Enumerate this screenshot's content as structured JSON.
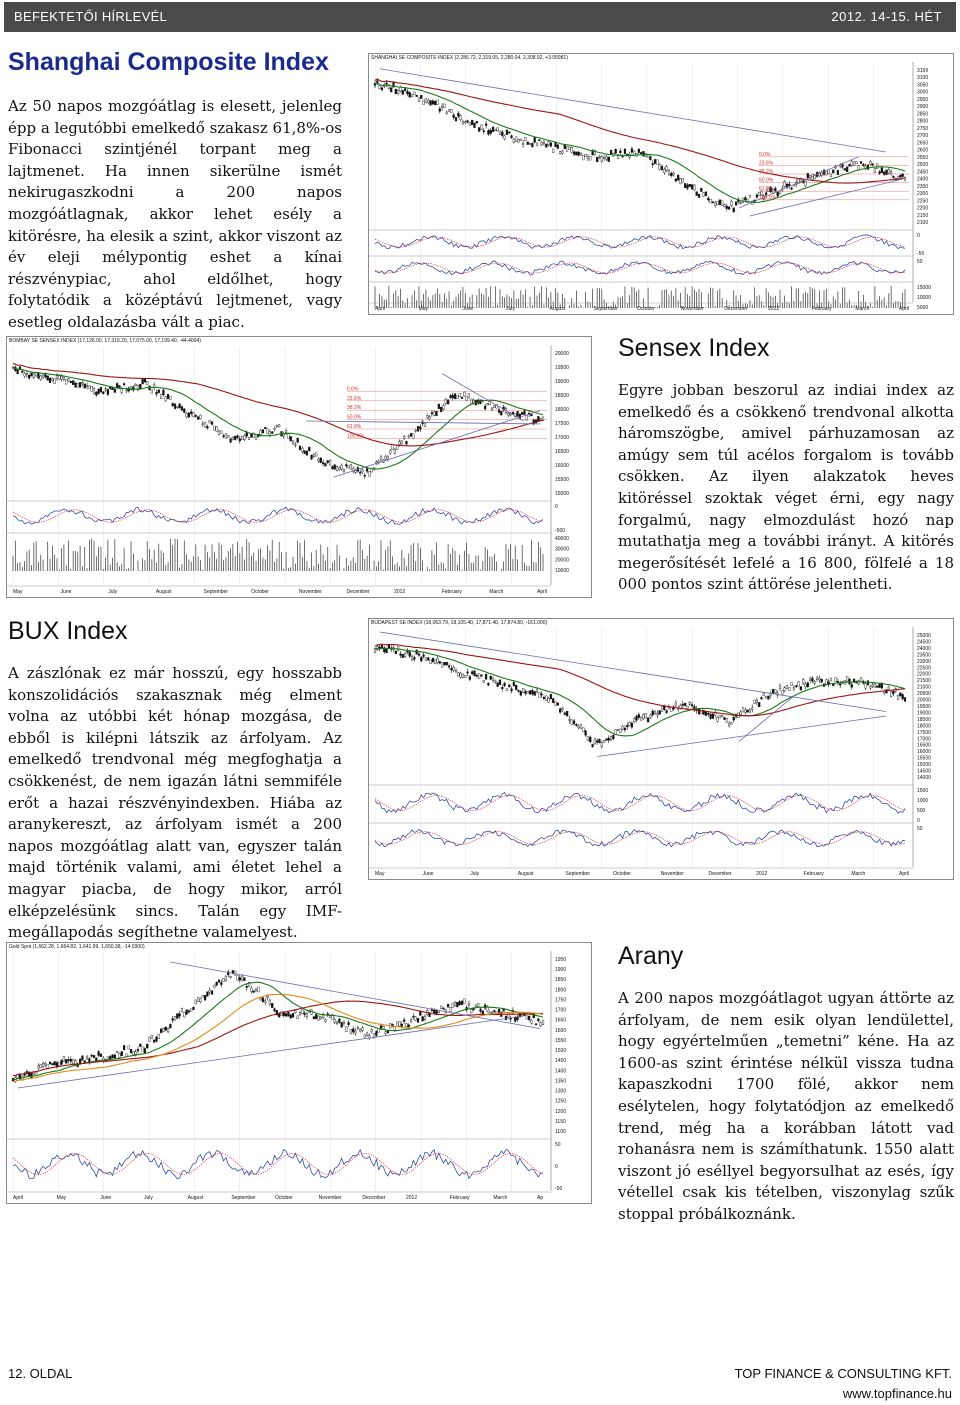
{
  "header": {
    "left": "BEFEKTETŐI HÍRLEVÉL",
    "right": "2012. 14-15. HÉT"
  },
  "shanghai": {
    "title": "Shanghai Composite Index",
    "text": "Az 50 napos mozgóátlag is elesett, jelenleg épp a legutóbbi emelkedő szakasz 61,8%-os Fibonacci szintjénél torpant meg a lajtmenet. Ha innen sikerülne ismét nekirugaszkodni a 200 napos mozgóátlagnak, akkor lehet esély a kitörésre, ha elesik a szint, akkor viszont az év eleji mélypontig eshet a kínai részvénypiac, ahol eldőlhet, hogy folytatódik a középtávú lejtmenet, vagy esetleg oldalazásba vált a piac.",
    "chart_title": "SHANGHAI SE COMPOSITE INDEX (2,286.72, 2,319.05, 2,280.04, 2,308.92, +3.05981)",
    "y_ticks": [
      "3159",
      "3100",
      "3050",
      "3000",
      "2950",
      "2900",
      "2850",
      "2800",
      "2750",
      "2700",
      "2650",
      "2600",
      "2550",
      "2500",
      "2450",
      "2400",
      "2350",
      "2300",
      "2250",
      "2200",
      "2150",
      "2100"
    ],
    "osc_ticks": [
      "0",
      "-50"
    ],
    "osc2_ticks": [
      "50"
    ],
    "vol_ticks": [
      "15000",
      "10000",
      "5000"
    ],
    "fib": [
      "0.0%",
      "23.6%",
      "38.2%",
      "50.0%",
      "61.8%",
      "100.0%"
    ],
    "months": [
      "April",
      "May",
      "June",
      "July",
      "August",
      "September",
      "October",
      "November",
      "December",
      "2012",
      "February",
      "March",
      "April"
    ]
  },
  "sensex": {
    "title": "Sensex Index",
    "text": "Egyre jobban beszorul az indiai index az emelkedő és a csökkenő trendvonal alkotta háromszögbe, amivel párhuzamosan az amúgy sem túl acélos forgalom is tovább csökken. Az ilyen alakzatok heves kitöréssel szoktak véget érni, egy nagy forgalmú, nagy elmozdulást hozó nap mutathatja meg a további irányt. A kitörés megerősítését lefelé a 16 800, fölfelé a 18 000 pontos szint áttörése jelentheti.",
    "chart_title": "BOMBAY SE SENSEX INDEX (17,126.00, 17,319.20, 17,075.00, 17,199.40, -44.4004)",
    "y_ticks": [
      "20000",
      "19500",
      "19000",
      "18500",
      "18000",
      "17500",
      "17000",
      "16500",
      "16000",
      "15500",
      "15000"
    ],
    "osc_ticks": [
      "0",
      "-500"
    ],
    "vol_ticks": [
      "40000",
      "30000",
      "20000",
      "10000"
    ],
    "fib": [
      "0.0%",
      "23.6%",
      "38.2%",
      "50.0%",
      "61.8%",
      "100.0%"
    ],
    "months": [
      "May",
      "June",
      "July",
      "August",
      "September",
      "October",
      "November",
      "December",
      "2012",
      "February",
      "March",
      "April"
    ]
  },
  "bux": {
    "title": "BUX Index",
    "text": "A zászlónak ez már hosszú, egy hosszabb konszolidációs szakasznak még elment volna az utóbbi két hónap mozgása, de ebből is kilépni látszik az árfolyam. Az emelkedő trendvonal még megfoghatja a csökkenést, de nem igazán látni semmiféle erőt a hazai részvényindexben. Hiába az aranykereszt, az árfolyam ismét a 200 napos mozgóátlag alatt van, egyszer talán majd történik valami, ami életet lehel a magyar piacba, de hogy mikor, arról elképzelésünk sincs. Talán egy IMF-megállapodás segíthetne valamelyest.",
    "chart_title": "BUDAPEST SE INDEX (18,063.79, 18,105.40, 17,871.40, 17,874.80, -161.000)",
    "y_ticks": [
      "25000",
      "24500",
      "24000",
      "23500",
      "23000",
      "22500",
      "22000",
      "21500",
      "21000",
      "20500",
      "20000",
      "19500",
      "19000",
      "18500",
      "18000",
      "17500",
      "17000",
      "16500",
      "16000",
      "15500",
      "15000",
      "14500",
      "14000"
    ],
    "osc_ticks": [
      "1500",
      "1000",
      "500",
      "0"
    ],
    "osc2_ticks": [
      "50"
    ],
    "months": [
      "May",
      "June",
      "July",
      "August",
      "September",
      "October",
      "November",
      "December",
      "2012",
      "February",
      "March",
      "April"
    ]
  },
  "arany": {
    "title": "Arany",
    "text": "A 200 napos mozgóátlagot ugyan áttörte az árfolyam, de nem esik olyan lendülettel, hogy egyértelműen „temetni” kéne. Ha az 1600-as szint érintése nélkül vissza tudna kapaszkodni 1700 fölé, akkor nem esélytelen, hogy folytatódjon az emelkedő trend, még ha a korábban látott vad rohanásra nem is számíthatunk. 1550 alatt viszont jó eséllyel begyorsulhat az esés, így vétellel csak kis tételben, viszonylag szűk stoppal próbálkoznánk.",
    "chart_title": "Gold Spot (1,662.28, 1,664.82, 1,641.99, 1,650.38, -14.0300)",
    "y_ticks": [
      "1950",
      "1900",
      "1850",
      "1800",
      "1750",
      "1700",
      "1650",
      "1600",
      "1550",
      "1500",
      "1450",
      "1400",
      "1350",
      "1300",
      "1250",
      "1200",
      "1150",
      "1100"
    ],
    "osc_ticks": [
      "50",
      "0",
      "-50"
    ],
    "months": [
      "April",
      "May",
      "June",
      "July",
      "August",
      "September",
      "October",
      "November",
      "December",
      "2012",
      "February",
      "March",
      "Ap"
    ]
  },
  "footer": {
    "page": "12. OLDAL",
    "company": "TOP FINANCE & CONSULTING KFT.",
    "web": "www.topfinance.hu"
  }
}
